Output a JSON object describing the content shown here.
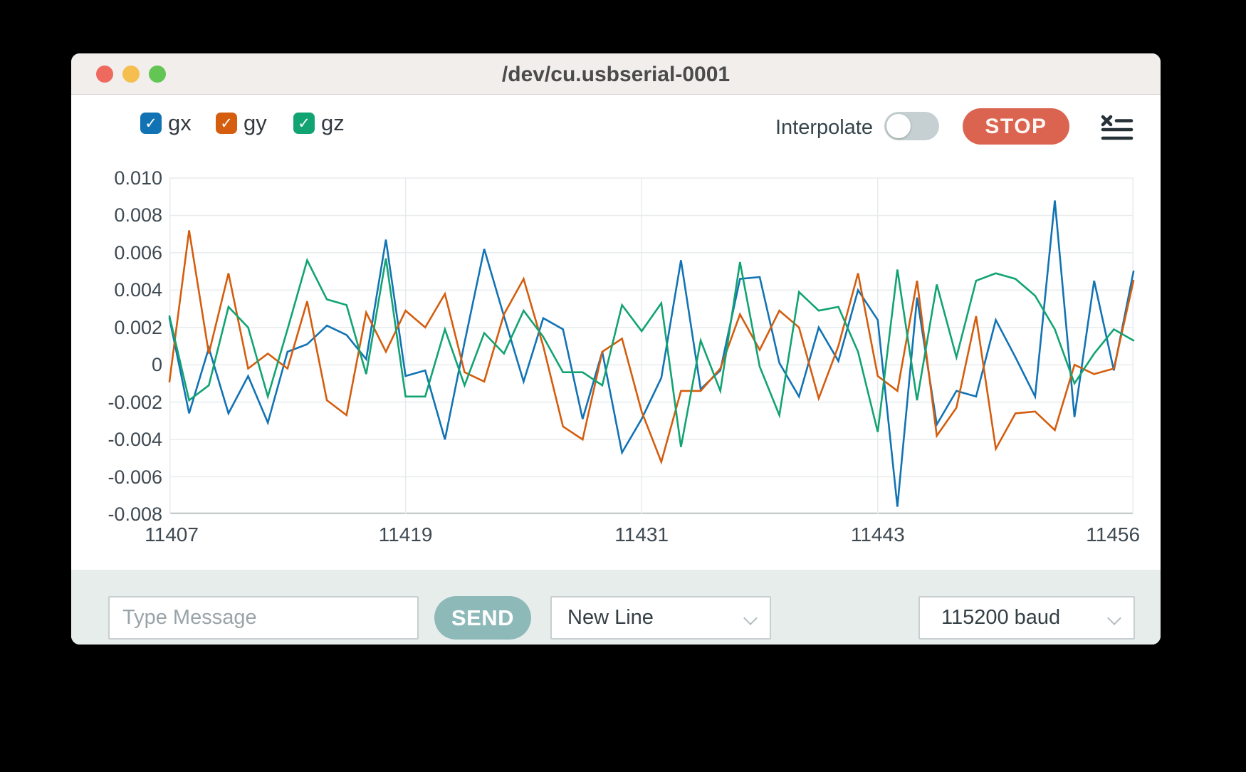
{
  "window": {
    "title": "/dev/cu.usbserial-0001"
  },
  "toolbar": {
    "checkboxes": [
      {
        "label": "gx",
        "color": "#1273b4",
        "checked": true,
        "check_glyph": "✓"
      },
      {
        "label": "gy",
        "color": "#d45d0e",
        "checked": true,
        "check_glyph": "✓"
      },
      {
        "label": "gz",
        "color": "#12a372",
        "checked": true,
        "check_glyph": "✓"
      }
    ],
    "interpolate_label": "Interpolate",
    "interpolate_on": false,
    "stop_label": "STOP",
    "clear_icon": "clear-plot-list-icon"
  },
  "chart_data": {
    "type": "line",
    "x_min": 11407,
    "x_max": 11456,
    "x_step": 1,
    "ylim": [
      -0.008,
      0.01
    ],
    "y_tick_step": 0.002,
    "y_tick_labels": [
      "0.010",
      "0.008",
      "0.006",
      "0.004",
      "0.002",
      "0",
      "-0.002",
      "-0.004",
      "-0.006",
      "-0.008"
    ],
    "x_ticks": [
      11407,
      11419,
      11431,
      11443,
      11456
    ],
    "grid": true,
    "legend_position": "top-left-as-checkboxes",
    "series": [
      {
        "name": "gx",
        "color": "#1273b4",
        "values": [
          0.0025,
          -0.0026,
          0.0009,
          -0.0026,
          -0.0006,
          -0.0031,
          0.0007,
          0.0011,
          0.0021,
          0.0016,
          0.0003,
          0.0067,
          -0.0006,
          -0.0003,
          -0.004,
          0.0012,
          0.0062,
          0.0026,
          -0.0009,
          0.0025,
          0.0019,
          -0.0029,
          0.0007,
          -0.0047,
          -0.0029,
          -0.0007,
          0.0056,
          -0.0013,
          -0.0003,
          0.0046,
          0.0047,
          0.0001,
          -0.0017,
          0.002,
          0.0002,
          0.004,
          0.0024,
          -0.0076,
          0.0036,
          -0.0032,
          -0.0014,
          -0.0017,
          0.0024,
          0.0004,
          -0.0017,
          0.0088,
          -0.0028,
          0.0045,
          -0.0003,
          0.005
        ]
      },
      {
        "name": "gy",
        "color": "#d45d0e",
        "values": [
          -0.0009,
          0.0072,
          0.0006,
          0.0049,
          -0.0002,
          0.0006,
          -0.0002,
          0.0034,
          -0.0019,
          -0.0027,
          0.0028,
          0.0007,
          0.0029,
          0.002,
          0.0038,
          -0.0004,
          -0.0009,
          0.0027,
          0.0046,
          0.001,
          -0.0033,
          -0.004,
          0.0007,
          0.0014,
          -0.0025,
          -0.0052,
          -0.0014,
          -0.0014,
          -0.0002,
          0.0027,
          0.0008,
          0.0029,
          0.002,
          -0.0018,
          0.001,
          0.0049,
          -0.0006,
          -0.0014,
          0.0045,
          -0.0038,
          -0.0023,
          0.0026,
          -0.0045,
          -0.0026,
          -0.0025,
          -0.0035,
          0.0,
          -0.0005,
          -0.0002,
          0.0045
        ]
      },
      {
        "name": "gz",
        "color": "#12a372",
        "values": [
          0.0026,
          -0.0019,
          -0.0011,
          0.0031,
          0.002,
          -0.0017,
          0.0019,
          0.0056,
          0.0035,
          0.0032,
          -0.0005,
          0.0057,
          -0.0017,
          -0.0017,
          0.0019,
          -0.0011,
          0.0017,
          0.0006,
          0.0029,
          0.0015,
          -0.0004,
          -0.0004,
          -0.0011,
          0.0032,
          0.0018,
          0.0033,
          -0.0044,
          0.0013,
          -0.0014,
          0.0055,
          -0.0001,
          -0.0027,
          0.0039,
          0.0029,
          0.0031,
          0.0007,
          -0.0036,
          0.0051,
          -0.0019,
          0.0043,
          0.0004,
          0.0045,
          0.0049,
          0.0046,
          0.0037,
          0.0019,
          -0.001,
          0.0006,
          0.0019,
          0.0013
        ]
      }
    ]
  },
  "bottom_bar": {
    "message_placeholder": "Type Message",
    "send_label": "SEND",
    "line_ending": "New Line",
    "baud_rate": "115200 baud"
  },
  "colors": {
    "grid": "#e8ebed",
    "axis": "#c6cbce",
    "axis_text": "#3e4951",
    "stop_button": "#da6450",
    "send_button": "#8db9b9",
    "toggle_track": "#c6d0d2",
    "bottom_bar_bg": "#e7edeb",
    "titlebar_bg": "#f1eeec",
    "icon": "#263238"
  }
}
